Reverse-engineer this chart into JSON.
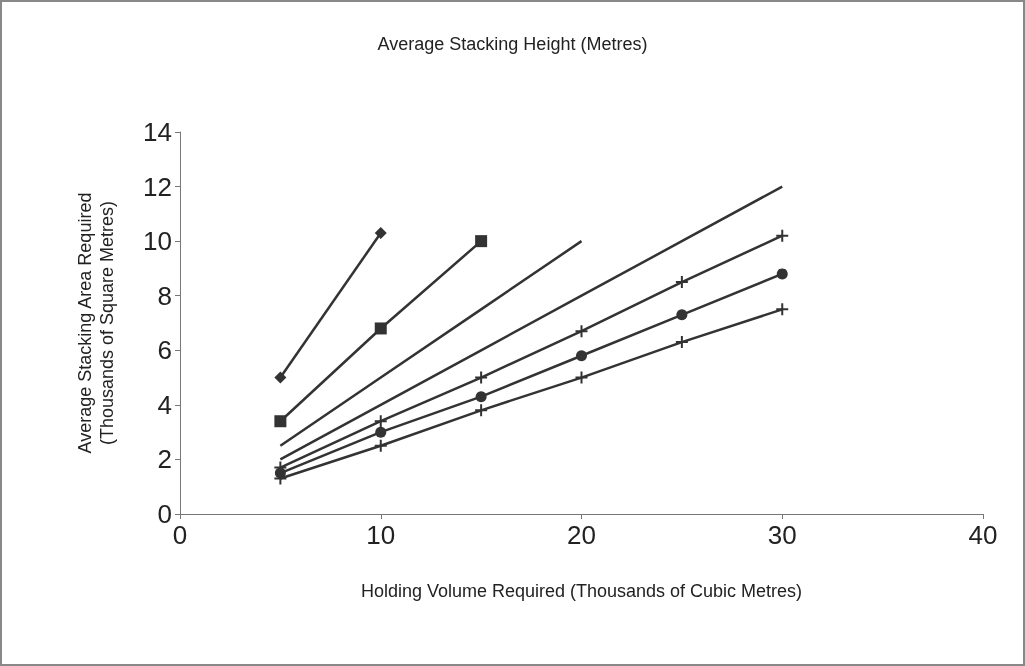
{
  "chart_data": {
    "type": "line",
    "title": "Average Stacking Height (Metres)",
    "xlabel": "Holding Volume Required (Thousands of Cubic Metres)",
    "ylabel": "Average Stacking Area Required\n(Thousands of Square Metres)",
    "xlim": [
      0,
      40
    ],
    "xticks": [
      0,
      10,
      20,
      30,
      40
    ],
    "ylim": [
      0,
      14
    ],
    "yticks": [
      0,
      2,
      4,
      6,
      8,
      10,
      12,
      14
    ],
    "grid": false,
    "line_style": "solid",
    "series": [
      {
        "color": "#333333",
        "marker": "diamond",
        "x": [
          5,
          10
        ],
        "values": [
          5,
          10.3
        ]
      },
      {
        "color": "#333333",
        "marker": "square",
        "x": [
          5,
          10,
          15
        ],
        "values": [
          3.4,
          6.8,
          10
        ]
      },
      {
        "color": "#333333",
        "marker": "none",
        "x": [
          5,
          10,
          15,
          20
        ],
        "values": [
          2.5,
          5,
          7.5,
          10
        ]
      },
      {
        "color": "#333333",
        "marker": "none",
        "x": [
          5,
          10,
          15,
          20,
          25,
          30
        ],
        "values": [
          2,
          4,
          6,
          8,
          10,
          12
        ]
      },
      {
        "color": "#333333",
        "marker": "cross",
        "x": [
          5,
          10,
          15,
          20,
          25,
          30
        ],
        "values": [
          1.7,
          3.4,
          5,
          6.7,
          8.5,
          10.2
        ]
      },
      {
        "color": "#333333",
        "marker": "circle",
        "x": [
          5,
          10,
          15,
          20,
          25,
          30
        ],
        "values": [
          1.5,
          3,
          4.3,
          5.8,
          7.3,
          8.8
        ]
      },
      {
        "color": "#333333",
        "marker": "cross",
        "x": [
          5,
          10,
          15,
          20,
          25,
          30
        ],
        "values": [
          1.3,
          2.5,
          3.8,
          5,
          6.3,
          7.5
        ]
      }
    ]
  }
}
